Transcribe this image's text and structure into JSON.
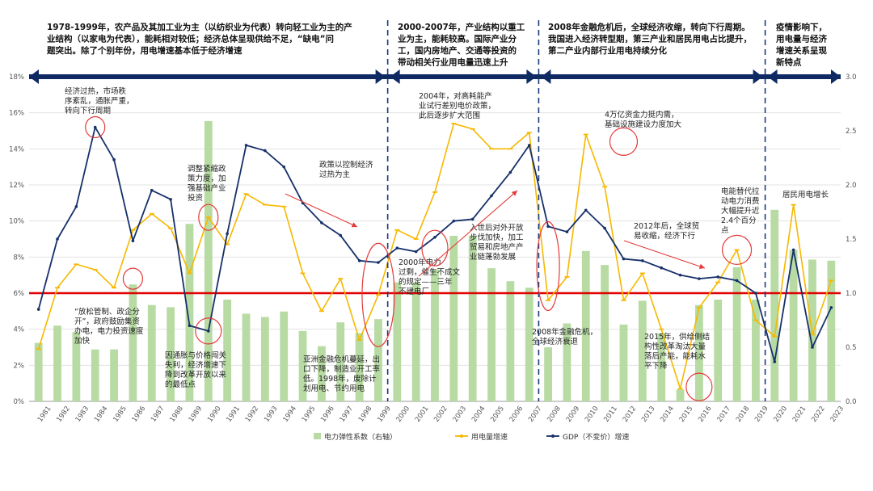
{
  "chart_data": {
    "type": "bar+line",
    "title": "",
    "years": [
      "1981",
      "1982",
      "1983",
      "1984",
      "1985",
      "1986",
      "1987",
      "1988",
      "1989",
      "1990",
      "1991",
      "1992",
      "1993",
      "1994",
      "1995",
      "1996",
      "1997",
      "1998",
      "1999",
      "2000",
      "2001",
      "2002",
      "2003",
      "2004",
      "2005",
      "2006",
      "2007",
      "2008",
      "2009",
      "2010",
      "2011",
      "2012",
      "2013",
      "2014",
      "2015",
      "2016",
      "2017",
      "2018",
      "2019",
      "2020",
      "2021",
      "2022",
      "2023"
    ],
    "left_axis": {
      "min": 0,
      "max": 18,
      "step": 2,
      "tick_labels": [
        "0%",
        "2%",
        "4%",
        "6%",
        "8%",
        "10%",
        "12%",
        "14%",
        "16%",
        "18%"
      ]
    },
    "right_axis": {
      "min": 0,
      "max": 3,
      "step": 0.5,
      "tick_labels": [
        "0.0",
        "0.5",
        "1.0",
        "1.5",
        "2.0",
        "2.5",
        "3.0"
      ]
    },
    "series": [
      {
        "name": "电力弹性系数（右轴）",
        "type": "bar",
        "axis": "right",
        "color": "#b7dba3",
        "values": [
          0.54,
          0.7,
          0.64,
          0.48,
          0.48,
          1.08,
          0.89,
          0.87,
          1.64,
          2.59,
          0.94,
          0.81,
          0.78,
          0.83,
          0.65,
          0.51,
          0.73,
          0.63,
          0.76,
          1.1,
          1.1,
          1.22,
          1.53,
          1.53,
          1.23,
          1.11,
          1.05,
          0.5,
          0.72,
          1.39,
          1.26,
          0.71,
          0.93,
          0.63,
          0.11,
          0.89,
          0.94,
          1.24,
          0.94,
          1.77,
          1.4,
          1.31,
          1.3
        ]
      },
      {
        "name": "用电量增速",
        "type": "line",
        "axis": "left",
        "color": "#f6b800",
        "values": [
          2.9,
          6.3,
          7.6,
          7.3,
          6.3,
          9.5,
          10.4,
          9.6,
          7.1,
          10.2,
          8.7,
          11.5,
          10.9,
          10.8,
          7.1,
          5.0,
          6.8,
          3.4,
          5.9,
          9.5,
          9.0,
          11.6,
          15.4,
          15.1,
          14.0,
          14.0,
          14.9,
          5.6,
          6.9,
          14.8,
          11.9,
          5.6,
          7.1,
          4.0,
          0.7,
          5.2,
          6.6,
          8.4,
          4.5,
          3.6,
          10.9,
          3.7,
          6.7
        ]
      },
      {
        "name": "GDP（不变价）增速",
        "type": "line",
        "axis": "left",
        "color": "#16306a",
        "values": [
          5.1,
          9.0,
          10.8,
          15.2,
          13.4,
          8.9,
          11.7,
          11.2,
          4.2,
          3.9,
          9.3,
          14.2,
          13.9,
          13.0,
          11.0,
          9.9,
          9.2,
          7.8,
          7.7,
          8.5,
          8.3,
          9.1,
          10.0,
          10.1,
          11.4,
          12.7,
          14.2,
          9.7,
          9.4,
          10.6,
          9.6,
          7.9,
          7.8,
          7.4,
          7.0,
          6.8,
          6.9,
          6.7,
          6.0,
          2.2,
          8.4,
          3.0,
          5.2
        ]
      }
    ],
    "reference_line": {
      "axis": "left",
      "value": 6,
      "color": "#e00000"
    },
    "legend": [
      "电力弹性系数（右轴）",
      "用电量增速",
      "GDP（不变价）增速"
    ],
    "legend_position": "bottom",
    "grid": true,
    "eras": [
      {
        "lines": [
          "1978-1999年，农产品及其加工业为主（以纺织业为代表）转向轻工业为主的产",
          "业结构（以家电为代表），能耗相对较低；经济总体呈现供给不足，“缺电”问",
          "题突出。除了个别年份，用电增速基本低于经济增速"
        ]
      },
      {
        "lines": [
          "2000-2007年，产业结构以重工",
          "业为主，能耗较高。国际产业分",
          "工，国内房地产、交通等投资的",
          "带动相关行业用电量迅速上升"
        ]
      },
      {
        "lines": [
          "2008年金融危机后，全球经济收缩，转向下行周期。",
          "我国进入经济转型期，第三产业和居民用电占比提升，",
          "第二产业内部行业用电持续分化"
        ]
      },
      {
        "lines": [
          "疫情影响下，",
          "用电量与经济",
          "增速关系呈现",
          "新特点"
        ]
      }
    ],
    "annotations": [
      {
        "lines": [
          "经济过热，市场秩",
          "序紊乱，通胀严重，",
          "转向下行周期"
        ]
      },
      {
        "lines": [
          "调整紧缩政",
          "策力度，加",
          "强基础产业",
          "投资"
        ]
      },
      {
        "lines": [
          "政策以控制经济",
          "过热为主"
        ]
      },
      {
        "lines": [
          "2004年，对高耗能产",
          "业试行差别电价政策，",
          "此后逐步扩大范围"
        ]
      },
      {
        "lines": [
          "4万亿资金力挺内需，",
          "基础设施建设力度加大"
        ]
      },
      {
        "lines": [
          "电能替代拉",
          "动电力消费",
          "大幅提升近",
          "2.4个百分",
          "点"
        ]
      },
      {
        "lines": [
          "居民用电增长"
        ]
      },
      {
        "lines": [
          "2012年后，全球贸",
          "易收缩，经济下行"
        ]
      },
      {
        "lines": [
          "入世后对外开放",
          "步伐加快，加工",
          "贸易和房地产产",
          "业链蓬勃发展"
        ]
      },
      {
        "lines": [
          "2000年电力",
          "过剩，催生不成文",
          "的规定——三年",
          "不建电厂"
        ]
      },
      {
        "lines": [
          "“放松管制、政企分",
          "开”，政府鼓励集资",
          "办电，电力投资速度",
          "加快"
        ]
      },
      {
        "lines": [
          "因通胀与价格闯关",
          "失利，经济增速下",
          "降到改革开放以来",
          "的最低点"
        ]
      },
      {
        "lines": [
          "亚洲金融危机蔓延，出",
          "口下降，制造业开工率",
          "低。1998年，废除计",
          "划用电、节约用电"
        ]
      },
      {
        "lines": [
          "2008年金融危机，",
          "全球经济衰退"
        ]
      },
      {
        "lines": [
          "2015年，供给侧结",
          "构性改革淘汰大量",
          "落后产能，能耗水",
          "平下降"
        ]
      }
    ]
  }
}
